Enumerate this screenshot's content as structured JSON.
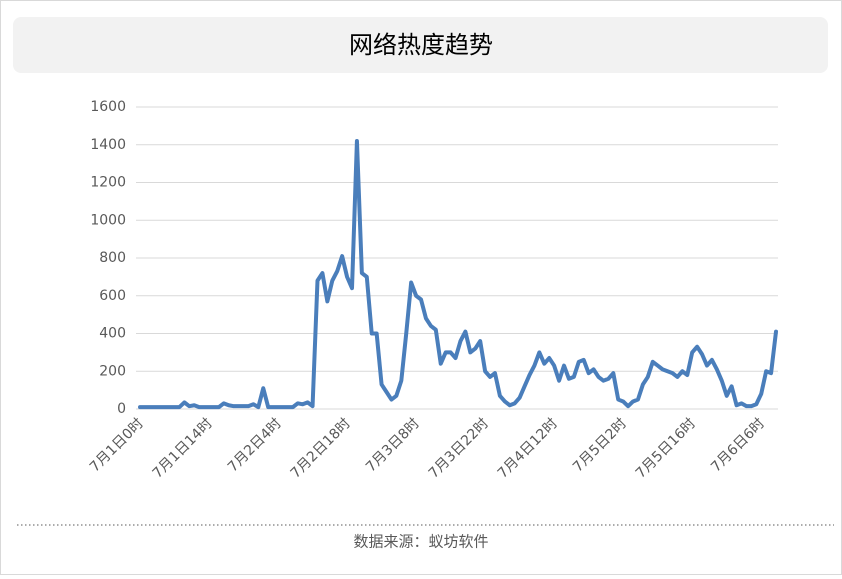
{
  "chart_data": {
    "type": "line",
    "title": "网络热度趋势",
    "source": "数据来源：蚁坊软件",
    "categories": [
      "7月1日0时",
      null,
      null,
      null,
      null,
      null,
      null,
      null,
      null,
      null,
      null,
      null,
      null,
      null,
      "7月1日14时",
      null,
      null,
      null,
      null,
      null,
      null,
      null,
      null,
      null,
      null,
      null,
      null,
      null,
      "7月2日4时",
      null,
      null,
      null,
      null,
      null,
      null,
      null,
      null,
      null,
      null,
      null,
      null,
      null,
      "7月2日18时",
      null,
      null,
      null,
      null,
      null,
      null,
      null,
      null,
      null,
      null,
      null,
      null,
      null,
      "7月3日8时",
      null,
      null,
      null,
      null,
      null,
      null,
      null,
      null,
      null,
      null,
      null,
      null,
      null,
      "7月3日22时",
      null,
      null,
      null,
      null,
      null,
      null,
      null,
      null,
      null,
      null,
      null,
      null,
      null,
      "7月4日12时",
      null,
      null,
      null,
      null,
      null,
      null,
      null,
      null,
      null,
      null,
      null,
      null,
      null,
      "7月5日2时",
      null,
      null,
      null,
      null,
      null,
      null,
      null,
      null,
      null,
      null,
      null,
      null,
      null,
      "7月5日16时",
      null,
      null,
      null,
      null,
      null,
      null,
      null,
      null,
      null,
      null,
      null,
      null,
      null,
      "7月6日6时",
      null,
      null,
      null
    ],
    "values": [
      10,
      10,
      10,
      10,
      10,
      10,
      10,
      10,
      10,
      35,
      15,
      20,
      10,
      10,
      10,
      10,
      10,
      30,
      20,
      15,
      15,
      15,
      15,
      25,
      10,
      110,
      10,
      10,
      10,
      10,
      10,
      10,
      30,
      25,
      35,
      15,
      680,
      720,
      570,
      680,
      730,
      810,
      700,
      640,
      1420,
      720,
      700,
      400,
      400,
      130,
      90,
      50,
      70,
      150,
      400,
      670,
      600,
      580,
      480,
      440,
      420,
      240,
      300,
      300,
      270,
      360,
      410,
      300,
      320,
      360,
      200,
      170,
      190,
      70,
      40,
      20,
      30,
      60,
      120,
      180,
      230,
      300,
      240,
      270,
      230,
      150,
      230,
      160,
      170,
      250,
      260,
      190,
      210,
      170,
      150,
      160,
      190,
      50,
      40,
      15,
      40,
      50,
      130,
      170,
      250,
      230,
      210,
      200,
      190,
      170,
      200,
      180,
      300,
      330,
      290,
      230,
      260,
      210,
      150,
      70,
      120,
      20,
      30,
      15,
      15,
      25,
      80,
      200,
      190,
      410
    ],
    "color": "#4a7ebb",
    "ylim": [
      0,
      1600
    ],
    "yticks": [
      0,
      200,
      400,
      600,
      800,
      1000,
      1200,
      1400,
      1600
    ],
    "grid": true
  }
}
